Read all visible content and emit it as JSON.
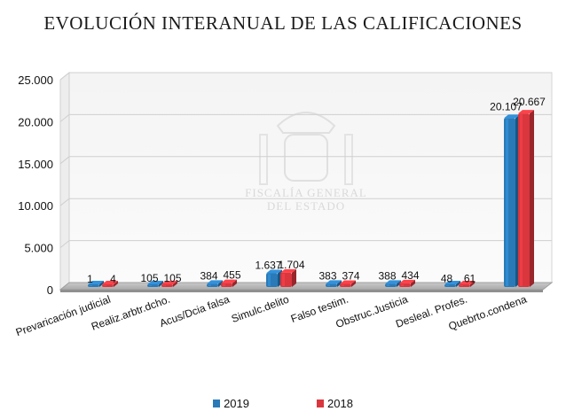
{
  "chart_data": {
    "type": "bar",
    "title": "EVOLUCIÓN INTERANUAL DE LAS CALIFICACIONES",
    "categories": [
      "Prevaricación judicial",
      "Realiz.arbtr.dcho.",
      "Acus/Dcia falsa",
      "Simulc.delito",
      "Falso testim.",
      "Obstruc.Justicia",
      "Desleal. Profes.",
      "Quebrto.condena"
    ],
    "series": [
      {
        "name": "2019",
        "color": "#2a7ab8",
        "values": [
          1,
          105,
          384,
          1637,
          383,
          388,
          48,
          20107
        ],
        "labels": [
          "1",
          "105",
          "384",
          "1.637",
          "383",
          "388",
          "48",
          "20.107"
        ]
      },
      {
        "name": "2018",
        "color": "#d9363e",
        "values": [
          4,
          105,
          455,
          1704,
          374,
          434,
          61,
          20667
        ],
        "labels": [
          "4",
          "105",
          "455",
          "1.704",
          "374",
          "434",
          "61",
          "20.667"
        ]
      }
    ],
    "ylim": [
      0,
      25000
    ],
    "yticks": [
      0,
      5000,
      10000,
      15000,
      20000,
      25000
    ],
    "ytick_labels": [
      "0",
      "5.000",
      "10.000",
      "15.000",
      "20.000",
      "25.000"
    ],
    "xlabel": "",
    "ylabel": "",
    "grid": true,
    "legend_position": "bottom",
    "style": "3d-clustered-column"
  },
  "watermark": {
    "lines": [
      "FISCALÍA GENERAL",
      "DEL ESTADO"
    ]
  }
}
